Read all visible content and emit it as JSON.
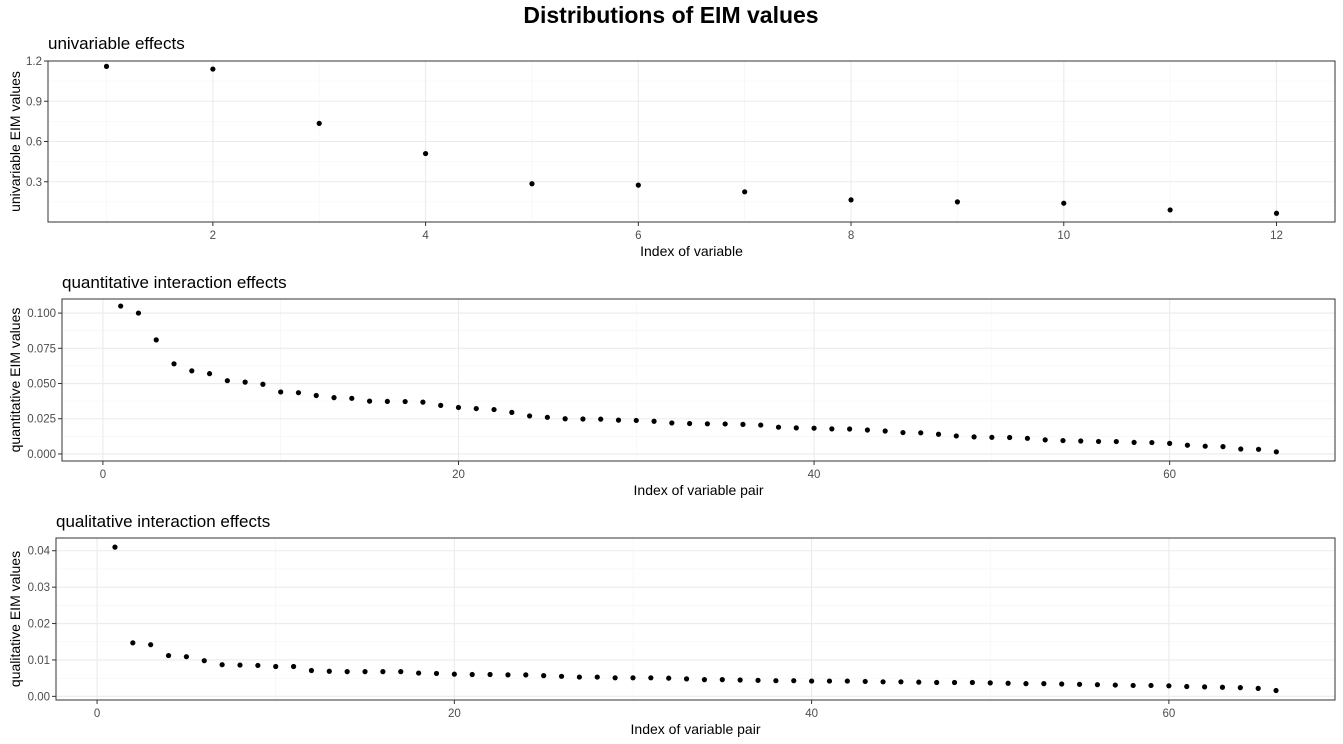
{
  "title": "Distributions of EIM values",
  "chart_data": [
    {
      "type": "scatter",
      "title": "univariable effects",
      "xlabel": "Index of variable",
      "ylabel": "univariable EIM values",
      "xlim": [
        0.45,
        12.55
      ],
      "ylim": [
        0.0,
        1.2
      ],
      "x_ticks": [
        2,
        4,
        6,
        8,
        10,
        12
      ],
      "y_ticks": [
        0.3,
        0.6,
        0.9,
        1.2
      ],
      "grid": true,
      "x": [
        1,
        2,
        3,
        4,
        5,
        6,
        7,
        8,
        9,
        10,
        11,
        12
      ],
      "y": [
        1.16,
        1.14,
        0.735,
        0.51,
        0.285,
        0.275,
        0.225,
        0.165,
        0.15,
        0.14,
        0.09,
        0.065
      ]
    },
    {
      "type": "scatter",
      "title": "quantitative interaction effects",
      "xlabel": "Index of variable pair",
      "ylabel": "quantitative EIM values",
      "xlim": [
        -2.3,
        69.3
      ],
      "ylim": [
        -0.005,
        0.11
      ],
      "x_ticks": [
        0,
        20,
        40,
        60
      ],
      "y_ticks": [
        0.0,
        0.025,
        0.05,
        0.075,
        0.1
      ],
      "y_tick_labels": [
        "0.000",
        "0.025",
        "0.050",
        "0.075",
        "0.100"
      ],
      "grid": true,
      "x": [
        1,
        2,
        3,
        4,
        5,
        6,
        7,
        8,
        9,
        10,
        11,
        12,
        13,
        14,
        15,
        16,
        17,
        18,
        19,
        20,
        21,
        22,
        23,
        24,
        25,
        26,
        27,
        28,
        29,
        30,
        31,
        32,
        33,
        34,
        35,
        36,
        37,
        38,
        39,
        40,
        41,
        42,
        43,
        44,
        45,
        46,
        47,
        48,
        49,
        50,
        51,
        52,
        53,
        54,
        55,
        56,
        57,
        58,
        59,
        60,
        61,
        62,
        63,
        64,
        65,
        66
      ],
      "y": [
        0.105,
        0.1,
        0.081,
        0.064,
        0.059,
        0.057,
        0.052,
        0.051,
        0.0495,
        0.044,
        0.0435,
        0.0415,
        0.04,
        0.0395,
        0.0375,
        0.0373,
        0.0372,
        0.0368,
        0.0345,
        0.033,
        0.0322,
        0.0315,
        0.0295,
        0.027,
        0.026,
        0.025,
        0.0248,
        0.0247,
        0.024,
        0.0238,
        0.0232,
        0.022,
        0.0216,
        0.0214,
        0.0213,
        0.021,
        0.0205,
        0.019,
        0.0185,
        0.0183,
        0.0178,
        0.0177,
        0.017,
        0.0163,
        0.0152,
        0.015,
        0.014,
        0.0128,
        0.0121,
        0.0118,
        0.0117,
        0.0111,
        0.01,
        0.0095,
        0.0092,
        0.0089,
        0.0088,
        0.0082,
        0.0081,
        0.0075,
        0.0062,
        0.0055,
        0.0052,
        0.0035,
        0.0033,
        0.0015
      ]
    },
    {
      "type": "scatter",
      "title": "qualitative interaction effects",
      "xlabel": "Index of variable pair",
      "ylabel": "qualitative EIM values",
      "xlim": [
        -2.3,
        69.3
      ],
      "ylim": [
        -0.001,
        0.0435
      ],
      "x_ticks": [
        0,
        20,
        40,
        60
      ],
      "y_ticks": [
        0.0,
        0.01,
        0.02,
        0.03,
        0.04
      ],
      "y_tick_labels": [
        "0.00",
        "0.01",
        "0.02",
        "0.03",
        "0.04"
      ],
      "grid": true,
      "x": [
        1,
        2,
        3,
        4,
        5,
        6,
        7,
        8,
        9,
        10,
        11,
        12,
        13,
        14,
        15,
        16,
        17,
        18,
        19,
        20,
        21,
        22,
        23,
        24,
        25,
        26,
        27,
        28,
        29,
        30,
        31,
        32,
        33,
        34,
        35,
        36,
        37,
        38,
        39,
        40,
        41,
        42,
        43,
        44,
        45,
        46,
        47,
        48,
        49,
        50,
        51,
        52,
        53,
        54,
        55,
        56,
        57,
        58,
        59,
        60,
        61,
        62,
        63,
        64,
        65,
        66
      ],
      "y": [
        0.041,
        0.0147,
        0.0142,
        0.0112,
        0.0109,
        0.0098,
        0.0087,
        0.0086,
        0.0085,
        0.0082,
        0.0082,
        0.0071,
        0.0069,
        0.0068,
        0.0068,
        0.0068,
        0.0068,
        0.0064,
        0.0063,
        0.0061,
        0.006,
        0.006,
        0.0059,
        0.0059,
        0.0057,
        0.0055,
        0.0053,
        0.0053,
        0.0051,
        0.0051,
        0.0051,
        0.005,
        0.0048,
        0.0046,
        0.0046,
        0.0045,
        0.0044,
        0.0043,
        0.0043,
        0.0042,
        0.0042,
        0.0042,
        0.0041,
        0.004,
        0.004,
        0.0039,
        0.0038,
        0.0038,
        0.0038,
        0.0037,
        0.0036,
        0.0035,
        0.0035,
        0.0034,
        0.0033,
        0.0032,
        0.0031,
        0.003,
        0.003,
        0.0029,
        0.0027,
        0.0026,
        0.0025,
        0.0024,
        0.0022,
        0.0016
      ]
    }
  ]
}
